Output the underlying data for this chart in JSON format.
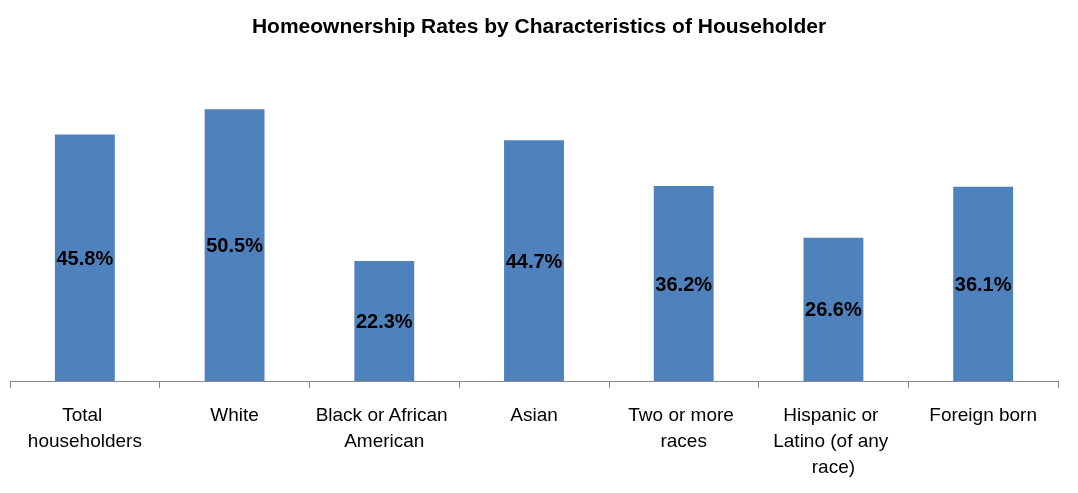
{
  "chart_data": {
    "type": "bar",
    "title": "Homeownership Rates by Characteristics of Householder",
    "categories": [
      "Total householders",
      "White",
      "Black or African American",
      "Asian",
      "Two or more races",
      "Hispanic or Latino (of any race)",
      "Foreign born"
    ],
    "values": [
      45.8,
      50.5,
      22.3,
      44.7,
      36.2,
      26.6,
      36.1
    ],
    "value_labels": [
      "45.8%",
      "50.5%",
      "22.3%",
      "44.7%",
      "36.2%",
      "26.6%",
      "36.1%"
    ],
    "color": "#4f81bd"
  }
}
